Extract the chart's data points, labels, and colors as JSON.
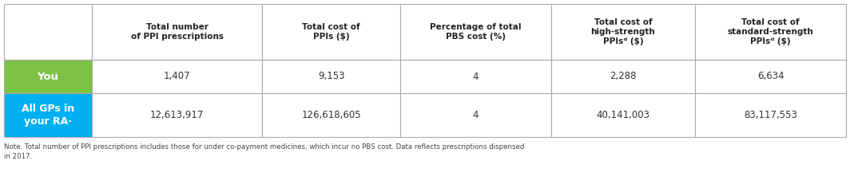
{
  "col_headers": [
    "Total number\nof PPI prescriptions",
    "Total cost of\nPPIs ($)",
    "Percentage of total\nPBS cost (%)",
    "Total cost of\nhigh-strength\nPPIsᵈ ($)",
    "Total cost of\nstandard-strength\nPPIsᵈ ($)"
  ],
  "row_labels": [
    "You",
    "All GPs in\nyour RA·"
  ],
  "row_label_colors": [
    "#7dc242",
    "#00b0f0"
  ],
  "row_label_text_color": "#ffffff",
  "data": [
    [
      "1,407",
      "9,153",
      "4",
      "2,288",
      "6,634"
    ],
    [
      "12,613,917",
      "126,618,605",
      "4",
      "40,141,003",
      "83,117,553"
    ]
  ],
  "note_line1": "Note. Total number of PPI prescriptions includes those for under co-payment medicines, which incur no PBS cost. Data reflects prescriptions dispensed",
  "note_line2": "in 2017.",
  "border_color": "#aaaaaa",
  "header_text_color": "#222222",
  "data_text_color": "#333333",
  "note_text_color": "#444444",
  "fig_width": 10.64,
  "fig_height": 2.21,
  "dpi": 100
}
